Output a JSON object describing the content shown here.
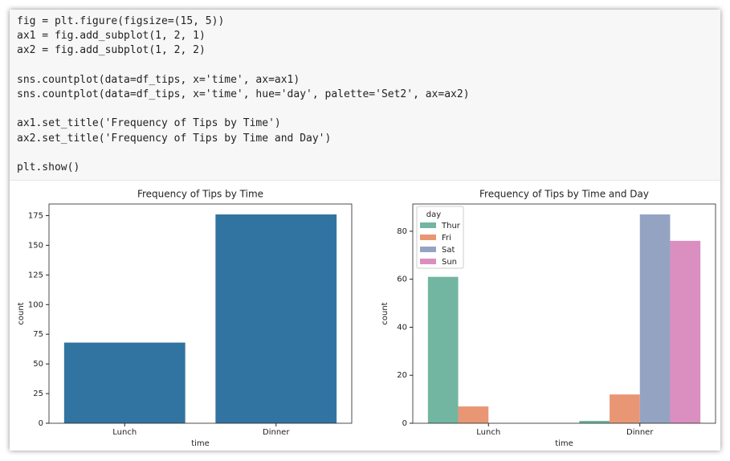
{
  "code": {
    "blocks": [
      [
        "fig = plt.figure(figsize=(15, 5))",
        "ax1 = fig.add_subplot(1, 2, 1)",
        "ax2 = fig.add_subplot(1, 2, 2)"
      ],
      [
        "sns.countplot(data=df_tips, x='time', ax=ax1)",
        "sns.countplot(data=df_tips, x='time', hue='day', palette='Set2', ax=ax2)"
      ],
      [
        "ax1.set_title('Frequency of Tips by Time')",
        "ax2.set_title('Frequency of Tips by Time and Day')"
      ],
      [
        "plt.show()"
      ]
    ]
  },
  "chart_data": [
    {
      "type": "bar",
      "title": "Frequency of Tips by Time",
      "x_label": "time",
      "y_label": "count",
      "categories": [
        "Lunch",
        "Dinner"
      ],
      "values": [
        68,
        176
      ],
      "color": "#3274a1",
      "ylim": [
        0,
        184.8
      ],
      "yticks": [
        0,
        25,
        50,
        75,
        100,
        125,
        150,
        175
      ]
    },
    {
      "type": "bar",
      "title": "Frequency of Tips by Time and Day",
      "x_label": "time",
      "y_label": "count",
      "categories": [
        "Lunch",
        "Dinner"
      ],
      "series": [
        {
          "name": "Thur",
          "color": "#72b6a1",
          "values": [
            61,
            1
          ]
        },
        {
          "name": "Fri",
          "color": "#e99675",
          "values": [
            7,
            12
          ]
        },
        {
          "name": "Sat",
          "color": "#95a3c3",
          "values": [
            0,
            87
          ]
        },
        {
          "name": "Sun",
          "color": "#db8ec0",
          "values": [
            0,
            76
          ]
        }
      ],
      "legend_title": "day",
      "legend": "upper left",
      "ylim": [
        0,
        91.35
      ],
      "yticks": [
        0,
        20,
        40,
        60,
        80
      ]
    }
  ]
}
